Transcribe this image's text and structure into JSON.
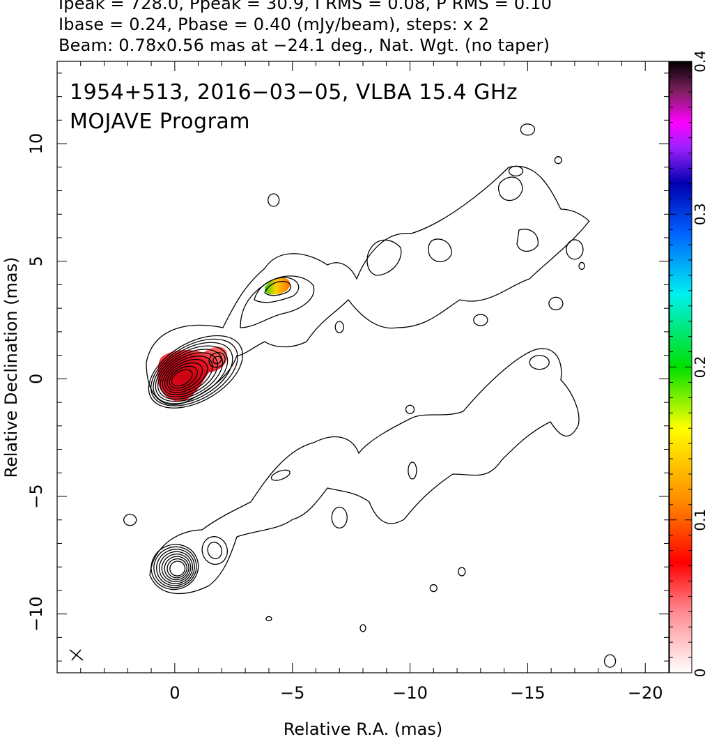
{
  "header": {
    "line1": "Ipeak = 728.0, Ppeak = 30.9, I RMS = 0.08, P RMS = 0.10",
    "line2": "Ibase = 0.24, Pbase = 0.40 (mJy/beam), steps: x 2",
    "line3": "Beam: 0.78x0.56 mas at −24.1 deg., Nat. Wgt. (no taper)"
  },
  "chart_data": {
    "type": "contour",
    "title_line1": "1954+513, 2016−03−05, VLBA 15.4 GHz",
    "title_line2": "MOJAVE Program",
    "xlabel": "Relative R.A. (mas)",
    "ylabel": "Relative Declination (mas)",
    "xlim": [
      5,
      -21
    ],
    "ylim": [
      -12.5,
      13.5
    ],
    "x_ticks": [
      0,
      -5,
      -10,
      -15,
      -20
    ],
    "x_tick_labels": [
      "0",
      "−5",
      "−10",
      "−15",
      "−20"
    ],
    "y_ticks": [
      10,
      5,
      0,
      -5,
      -10
    ],
    "y_tick_labels": [
      "10",
      "5",
      "0",
      "−5",
      "−10"
    ],
    "grid": false,
    "colorbar": {
      "min": 0,
      "max": 0.4,
      "ticks": [
        0,
        0.1,
        0.2,
        0.3,
        0.4
      ],
      "tick_labels": [
        "0",
        "0.1",
        "0.2",
        "0.3",
        "0.4"
      ]
    },
    "upper_panel": {
      "core": [
        0,
        0
      ],
      "components": [
        {
          "x": -1.8,
          "y": 0.8
        },
        {
          "x": -4.6,
          "y": 3.9
        },
        {
          "x": -9.5,
          "y": 5.0
        },
        {
          "x": -14.5,
          "y": 7.5
        }
      ]
    },
    "lower_panel": {
      "core": [
        0,
        -8
      ],
      "components": [
        {
          "x": -1.7,
          "y": -7.3
        },
        {
          "x": -4.5,
          "y": -4.1
        }
      ]
    },
    "beam": {
      "x": 4.2,
      "y": -11.7,
      "major": 0.78,
      "minor": 0.56,
      "pa": -24.1
    }
  }
}
